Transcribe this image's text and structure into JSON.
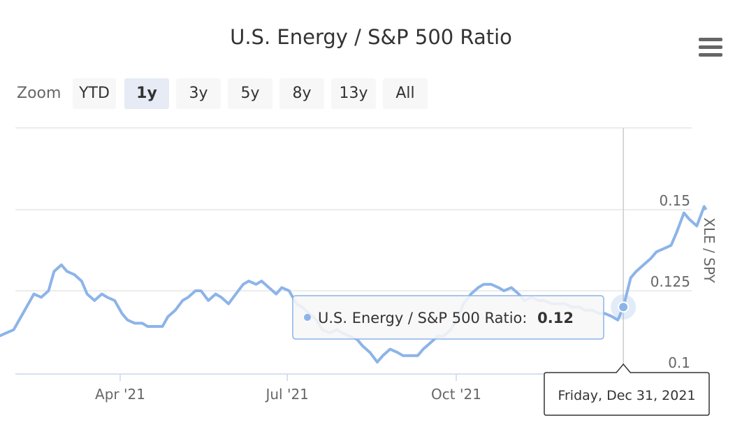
{
  "chart": {
    "title": "U.S. Energy / S&P 500 Ratio"
  },
  "menu": {
    "icon": "hamburger-menu-icon"
  },
  "zoom": {
    "label": "Zoom",
    "buttons": [
      {
        "label": "YTD",
        "selected": false
      },
      {
        "label": "1y",
        "selected": true
      },
      {
        "label": "3y",
        "selected": false
      },
      {
        "label": "5y",
        "selected": false
      },
      {
        "label": "8y",
        "selected": false
      },
      {
        "label": "13y",
        "selected": false
      },
      {
        "label": "All",
        "selected": false
      }
    ]
  },
  "tooltip": {
    "series_name": "U.S. Energy / S&P 500 Ratio:",
    "value": "0.12",
    "date_label": "Friday, Dec 31, 2021"
  },
  "colors": {
    "series": "#8cb4e8",
    "grid": "#e6e6e6",
    "crosshair": "#cccccc"
  },
  "chart_data": {
    "type": "line",
    "title": "U.S. Energy / S&P 500 Ratio",
    "ylabel": "XLE / SPY",
    "ylim": [
      0.1,
      0.15
    ],
    "yticks": [
      "0.1",
      "0.125",
      "0.15"
    ],
    "xticks": [
      {
        "label": "Apr '21",
        "date": "2021-04-01"
      },
      {
        "label": "Jul '21",
        "date": "2021-07-01"
      },
      {
        "label": "Oct '21",
        "date": "2021-10-01"
      }
    ],
    "grid": true,
    "legend": "none",
    "series": [
      {
        "name": "U.S. Energy / S&P 500 Ratio",
        "points": [
          [
            "2021-01-13",
            0.107
          ],
          [
            "2021-01-18",
            0.109
          ],
          [
            "2021-01-21",
            0.11
          ],
          [
            "2021-01-25",
            0.111
          ],
          [
            "2021-01-29",
            0.112
          ],
          [
            "2021-02-02",
            0.113
          ],
          [
            "2021-02-06",
            0.117
          ],
          [
            "2021-02-10",
            0.121
          ],
          [
            "2021-02-13",
            0.124
          ],
          [
            "2021-02-17",
            0.123
          ],
          [
            "2021-02-21",
            0.125
          ],
          [
            "2021-02-24",
            0.131
          ],
          [
            "2021-02-28",
            0.133
          ],
          [
            "2021-03-03",
            0.131
          ],
          [
            "2021-03-07",
            0.13
          ],
          [
            "2021-03-11",
            0.128
          ],
          [
            "2021-03-14",
            0.124
          ],
          [
            "2021-03-18",
            0.122
          ],
          [
            "2021-03-22",
            0.124
          ],
          [
            "2021-03-25",
            0.123
          ],
          [
            "2021-03-29",
            0.122
          ],
          [
            "2021-04-02",
            0.118
          ],
          [
            "2021-04-05",
            0.116
          ],
          [
            "2021-04-09",
            0.115
          ],
          [
            "2021-04-13",
            0.115
          ],
          [
            "2021-04-16",
            0.114
          ],
          [
            "2021-04-20",
            0.114
          ],
          [
            "2021-04-24",
            0.114
          ],
          [
            "2021-04-27",
            0.117
          ],
          [
            "2021-05-01",
            0.119
          ],
          [
            "2021-05-05",
            0.122
          ],
          [
            "2021-05-08",
            0.123
          ],
          [
            "2021-05-12",
            0.125
          ],
          [
            "2021-05-15",
            0.125
          ],
          [
            "2021-05-19",
            0.122
          ],
          [
            "2021-05-23",
            0.124
          ],
          [
            "2021-05-26",
            0.123
          ],
          [
            "2021-05-30",
            0.121
          ],
          [
            "2021-06-03",
            0.124
          ],
          [
            "2021-06-07",
            0.127
          ],
          [
            "2021-06-10",
            0.128
          ],
          [
            "2021-06-14",
            0.127
          ],
          [
            "2021-06-17",
            0.128
          ],
          [
            "2021-06-21",
            0.126
          ],
          [
            "2021-06-25",
            0.124
          ],
          [
            "2021-06-28",
            0.126
          ],
          [
            "2021-07-02",
            0.125
          ],
          [
            "2021-07-06",
            0.121
          ],
          [
            "2021-07-09",
            0.12
          ],
          [
            "2021-07-13",
            0.118
          ],
          [
            "2021-07-17",
            0.116
          ],
          [
            "2021-07-20",
            0.113
          ],
          [
            "2021-07-24",
            0.112
          ],
          [
            "2021-07-28",
            0.113
          ],
          [
            "2021-07-31",
            0.112
          ],
          [
            "2021-08-04",
            0.111
          ],
          [
            "2021-08-08",
            0.11
          ],
          [
            "2021-08-11",
            0.108
          ],
          [
            "2021-08-15",
            0.106
          ],
          [
            "2021-08-19",
            0.103
          ],
          [
            "2021-08-22",
            0.105
          ],
          [
            "2021-08-26",
            0.107
          ],
          [
            "2021-08-30",
            0.106
          ],
          [
            "2021-09-02",
            0.105
          ],
          [
            "2021-09-06",
            0.105
          ],
          [
            "2021-09-10",
            0.105
          ],
          [
            "2021-09-13",
            0.107
          ],
          [
            "2021-09-17",
            0.109
          ],
          [
            "2021-09-21",
            0.111
          ],
          [
            "2021-09-24",
            0.111
          ],
          [
            "2021-09-28",
            0.113
          ],
          [
            "2021-10-02",
            0.117
          ],
          [
            "2021-10-05",
            0.121
          ],
          [
            "2021-10-09",
            0.124
          ],
          [
            "2021-10-13",
            0.126
          ],
          [
            "2021-10-16",
            0.127
          ],
          [
            "2021-10-20",
            0.127
          ],
          [
            "2021-10-24",
            0.126
          ],
          [
            "2021-10-27",
            0.125
          ],
          [
            "2021-10-31",
            0.126
          ],
          [
            "2021-11-04",
            0.124
          ],
          [
            "2021-11-07",
            0.122
          ],
          [
            "2021-11-11",
            0.123
          ],
          [
            "2021-11-15",
            0.122
          ],
          [
            "2021-11-18",
            0.122
          ],
          [
            "2021-11-22",
            0.121
          ],
          [
            "2021-11-26",
            0.121
          ],
          [
            "2021-11-29",
            0.121
          ],
          [
            "2021-12-03",
            0.12
          ],
          [
            "2021-12-07",
            0.12
          ],
          [
            "2021-12-10",
            0.119
          ],
          [
            "2021-12-14",
            0.119
          ],
          [
            "2021-12-18",
            0.118
          ],
          [
            "2021-12-21",
            0.118
          ],
          [
            "2021-12-25",
            0.117
          ],
          [
            "2021-12-28",
            0.116
          ],
          [
            "2021-12-31",
            0.12
          ],
          [
            "2022-01-04",
            0.129
          ],
          [
            "2022-01-07",
            0.131
          ],
          [
            "2022-01-11",
            0.133
          ],
          [
            "2022-01-15",
            0.135
          ],
          [
            "2022-01-18",
            0.137
          ],
          [
            "2022-01-22",
            0.138
          ],
          [
            "2022-01-26",
            0.139
          ],
          [
            "2022-01-29",
            0.143
          ],
          [
            "2022-02-02",
            0.149
          ],
          [
            "2022-02-05",
            0.147
          ],
          [
            "2022-02-09",
            0.145
          ],
          [
            "2022-02-13",
            0.151
          ],
          [
            "2022-02-14",
            0.15
          ]
        ]
      }
    ],
    "highlight": {
      "date": "2021-12-31",
      "value": 0.12
    }
  }
}
